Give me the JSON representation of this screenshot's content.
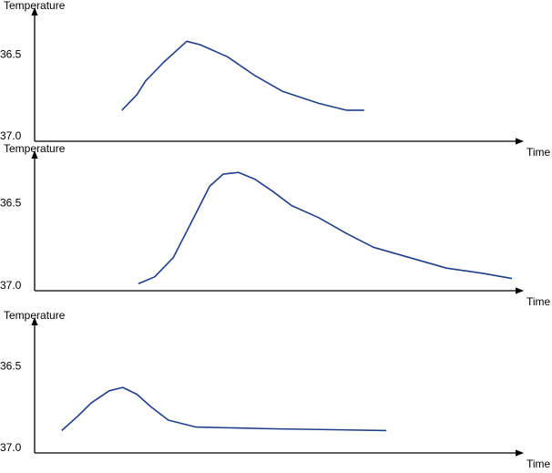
{
  "chart_data": [
    {
      "type": "line",
      "y_label": "Temperature",
      "x_label": "Time",
      "color": "#1f3f8a",
      "xlim": [
        0,
        100
      ],
      "ylim": [
        37.0,
        36.26
      ],
      "yticks": [
        36.5,
        {
          "value": 37.0,
          "label": "37.0"
        }
      ],
      "x": [
        18.0,
        21.1,
        22.9,
        26.7,
        31.4,
        34.2,
        39.8,
        45.5,
        51.1,
        58.6,
        64.3,
        68.0
      ],
      "values": [
        36.82,
        36.73,
        36.65,
        36.54,
        36.42,
        36.44,
        36.51,
        36.62,
        36.71,
        36.78,
        36.82,
        36.82
      ]
    },
    {
      "type": "line",
      "y_label": "Temperature",
      "x_label": "Time",
      "color": "#1f3f8a",
      "xlim": [
        0,
        100
      ],
      "ylim": [
        37.0,
        36.23
      ],
      "yticks": [
        36.5,
        {
          "value": 37.0,
          "label": "37.0"
        }
      ],
      "x": [
        21.4,
        24.8,
        28.6,
        32.3,
        36.1,
        38.9,
        42.1,
        45.5,
        49.2,
        53.0,
        58.6,
        64.3,
        69.9,
        77.4,
        85.0,
        92.5,
        98.5
      ],
      "values": [
        36.96,
        36.92,
        36.81,
        36.61,
        36.4,
        36.33,
        36.32,
        36.36,
        36.43,
        36.51,
        36.58,
        36.67,
        36.75,
        36.81,
        36.87,
        36.9,
        36.93
      ]
    },
    {
      "type": "line",
      "y_label": "Temperature",
      "x_label": "Time",
      "color": "#1f3f8a",
      "xlim": [
        0,
        100
      ],
      "ylim": [
        37.0,
        36.25
      ],
      "yticks": [
        36.5,
        {
          "value": 37.0,
          "label": "37.0"
        }
      ],
      "x": [
        5.6,
        8.8,
        11.7,
        15.4,
        18.2,
        21.1,
        23.9,
        27.6,
        33.3,
        49.2,
        72.6
      ],
      "values": [
        36.87,
        36.79,
        36.71,
        36.64,
        36.62,
        36.66,
        36.73,
        36.81,
        36.85,
        36.86,
        36.87
      ]
    }
  ]
}
